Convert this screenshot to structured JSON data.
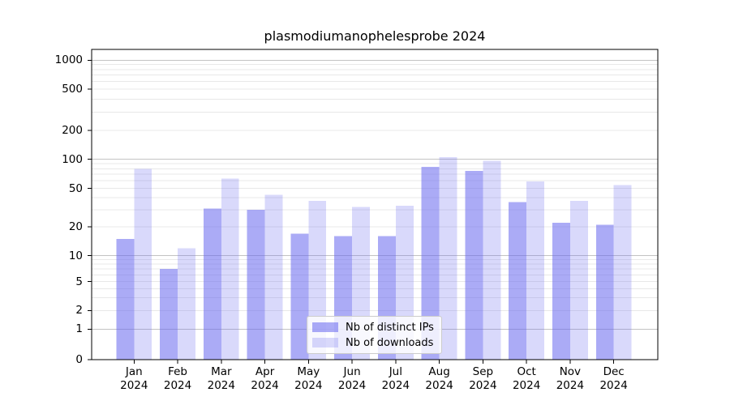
{
  "title": "plasmodiumanophelesprobe 2024",
  "legend": {
    "items": [
      {
        "label": "Nb of distinct IPs",
        "key": "distinct_ips"
      },
      {
        "label": "Nb of downloads",
        "key": "downloads"
      }
    ]
  },
  "colors": {
    "bar_base": "#6666ee",
    "series_alpha": [
      0.55,
      0.25
    ],
    "grid_major": "#c3c3c3",
    "grid_minor": "#e8e8e8",
    "axis": "#000000",
    "legend_border": "#cccccc",
    "legend_bg": "rgba(255,255,255,0.8)"
  },
  "chart_data": {
    "type": "bar",
    "title": "plasmodiumanophelesprobe 2024",
    "categories": [
      "Jan 2024",
      "Feb 2024",
      "Mar 2024",
      "Apr 2024",
      "May 2024",
      "Jun 2024",
      "Jul 2024",
      "Aug 2024",
      "Sep 2024",
      "Oct 2024",
      "Nov 2024",
      "Dec 2024"
    ],
    "series": [
      {
        "name": "Nb of distinct IPs",
        "values": [
          15,
          7,
          31,
          30,
          17,
          16,
          16,
          84,
          76,
          36,
          22,
          21
        ]
      },
      {
        "name": "Nb of downloads",
        "values": [
          80,
          12,
          63,
          43,
          37,
          32,
          33,
          105,
          97,
          59,
          37,
          54
        ]
      }
    ],
    "xlabel": "",
    "ylabel": "",
    "yscale": "symlog",
    "yticks": [
      0,
      1,
      2,
      5,
      10,
      20,
      50,
      100,
      200,
      500,
      1000
    ],
    "ylim": [
      0,
      1300
    ],
    "grid": true,
    "legend_position": "lower center"
  }
}
